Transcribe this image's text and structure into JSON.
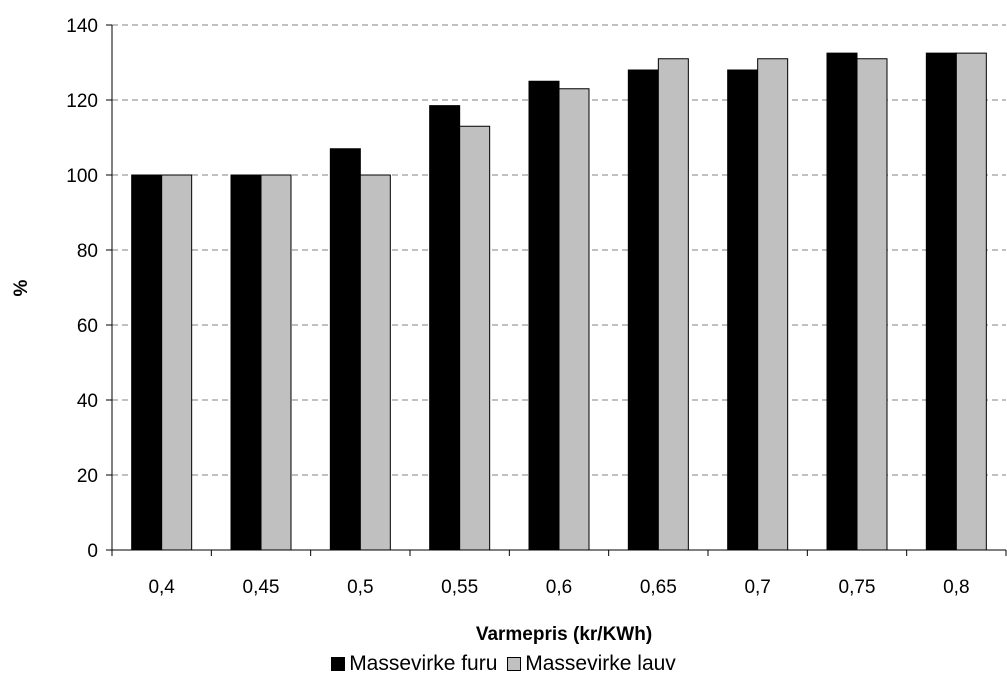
{
  "chart_data": {
    "type": "bar",
    "title": "",
    "xlabel": "Varmepris (kr/KWh)",
    "ylabel": "%",
    "categories": [
      "0,4",
      "0,45",
      "0,5",
      "0,55",
      "0,6",
      "0,65",
      "0,7",
      "0,75",
      "0,8"
    ],
    "series": [
      {
        "name": "Massevirke furu",
        "color": "#000000",
        "values": [
          100,
          100,
          107,
          118.5,
          125,
          128,
          128,
          132.5,
          132.5
        ]
      },
      {
        "name": "Massevirke lauv",
        "color": "#c0c0c0",
        "values": [
          100,
          100,
          100,
          113,
          123,
          131,
          131,
          131,
          132.5
        ]
      }
    ],
    "ylim": [
      0,
      140
    ],
    "yticks": [
      0,
      20,
      40,
      60,
      80,
      100,
      120,
      140
    ],
    "grid": "horizontal-dashed",
    "legend_position": "bottom"
  }
}
